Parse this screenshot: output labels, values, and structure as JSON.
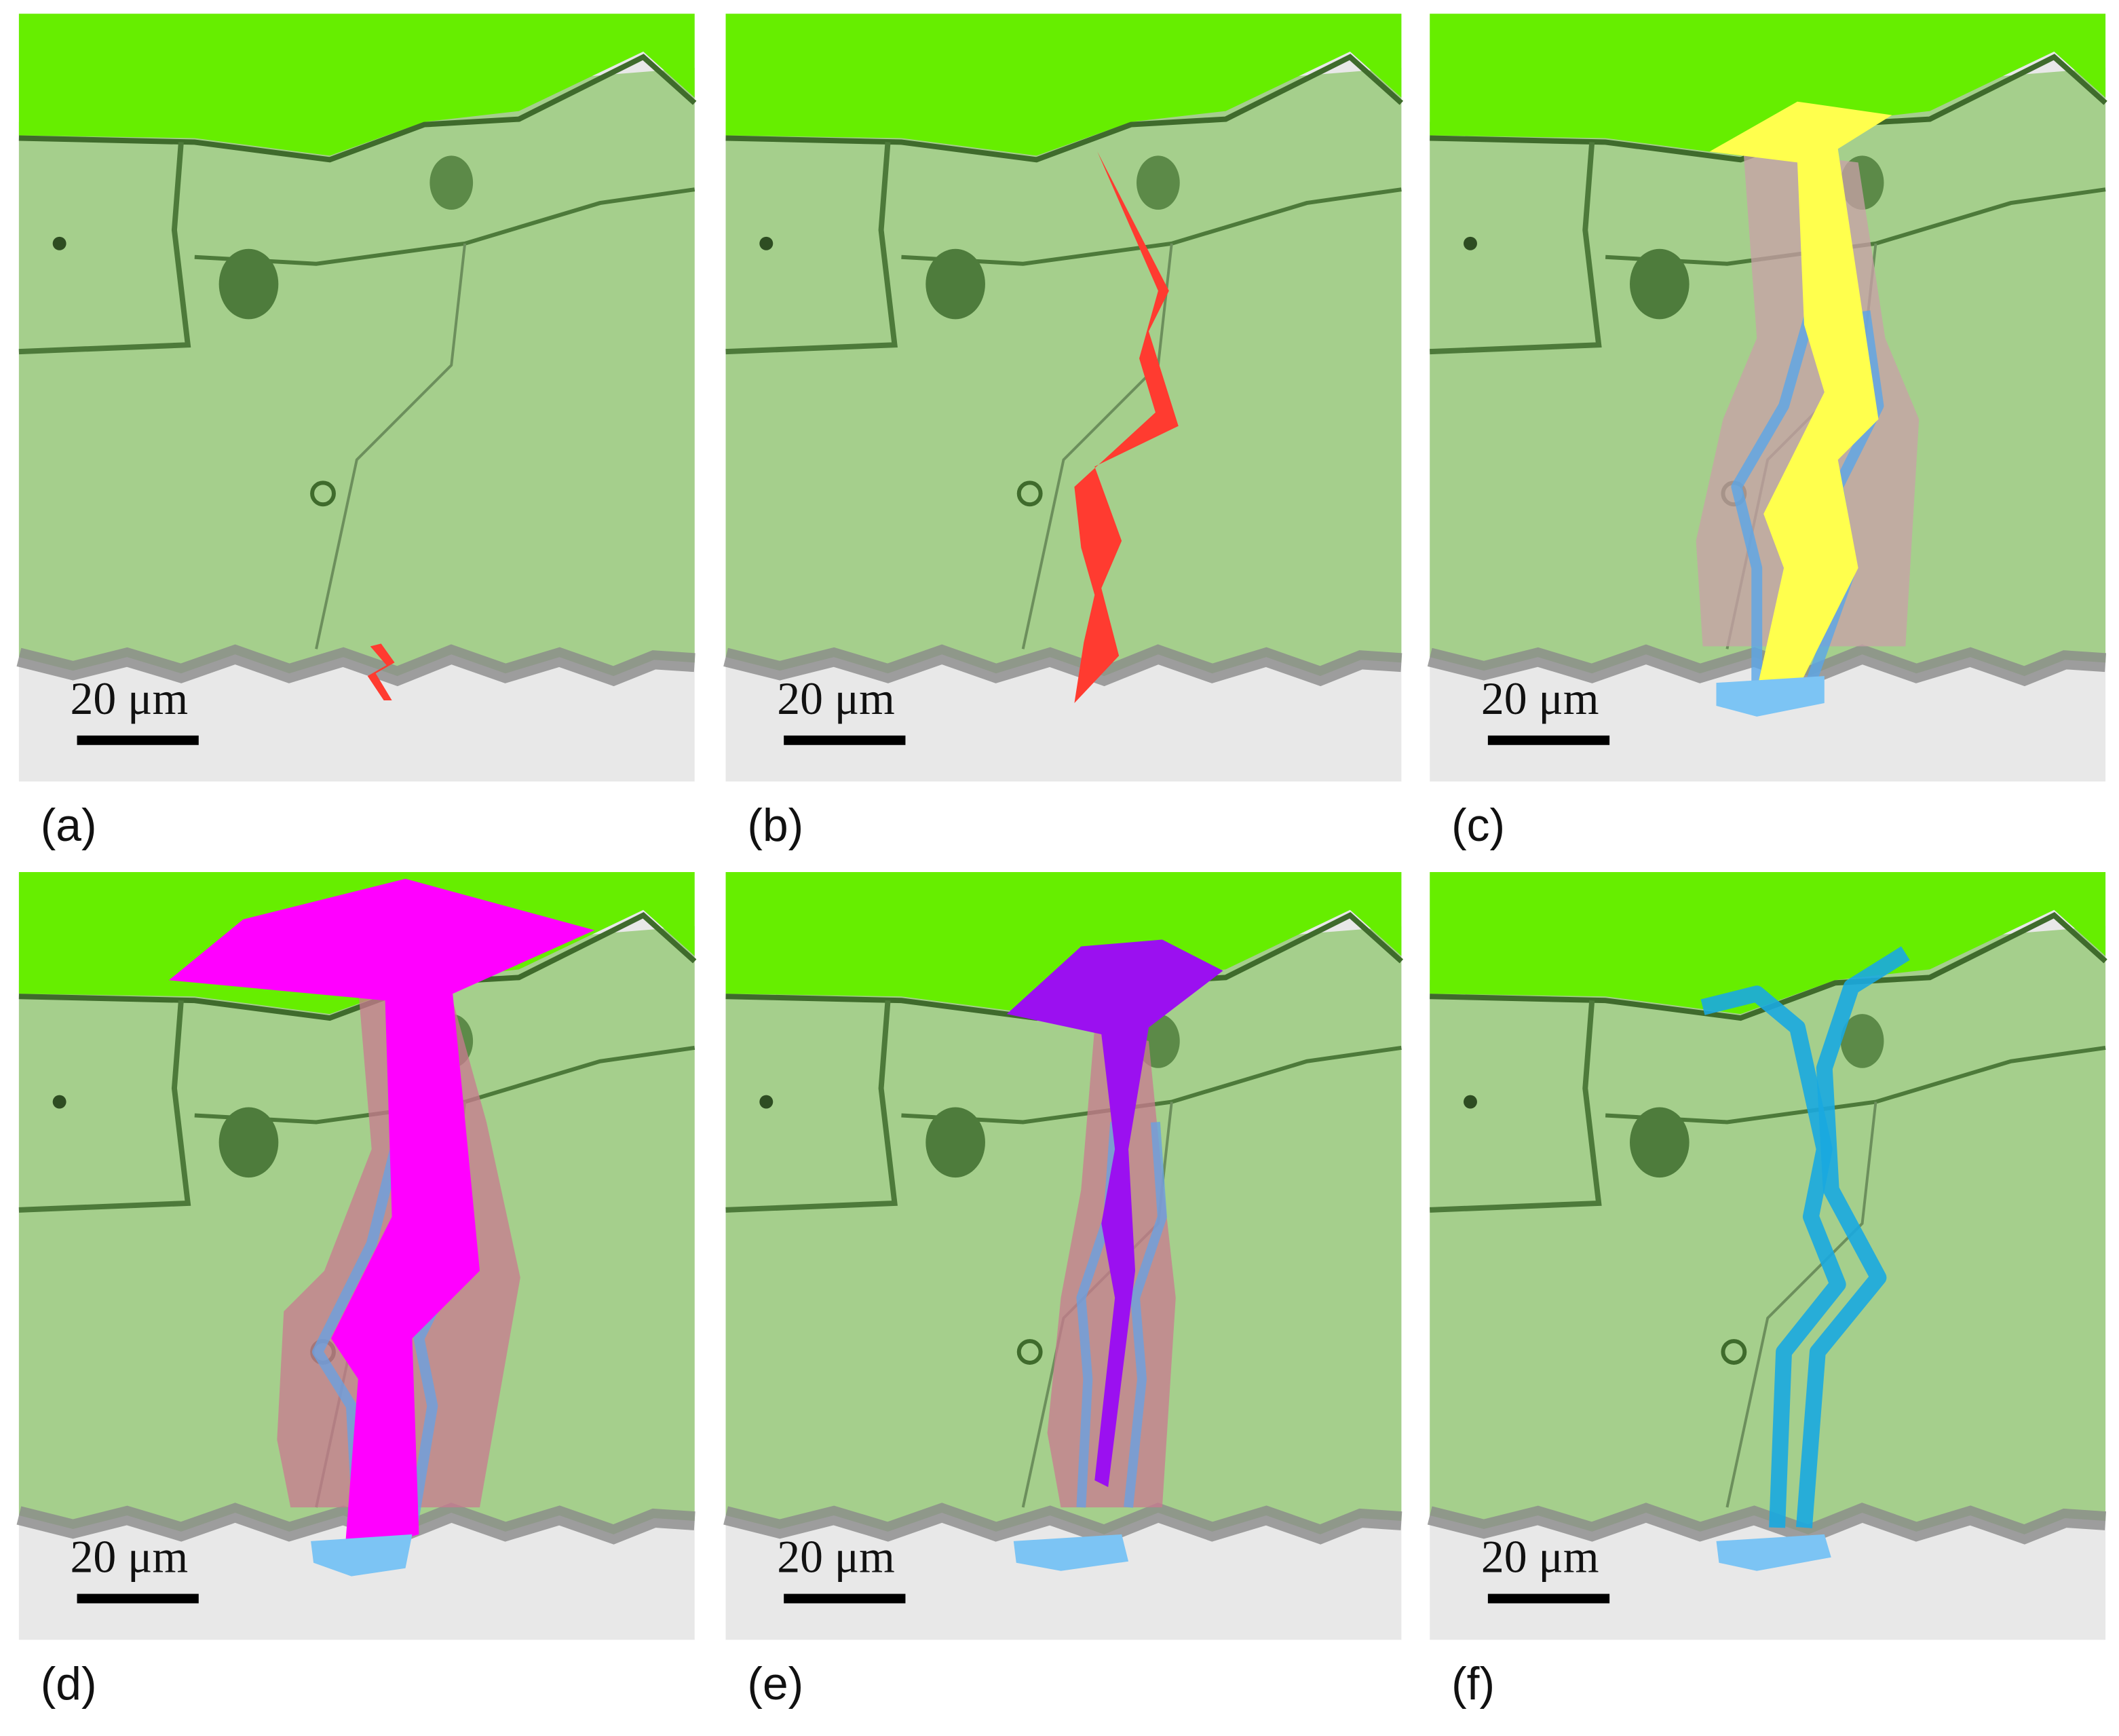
{
  "panels": [
    {
      "label": "(a)",
      "scale_bar": "20 μm"
    },
    {
      "label": "(b)",
      "scale_bar": "20 μm"
    },
    {
      "label": "(c)",
      "scale_bar": "20 μm"
    },
    {
      "label": "(d)",
      "scale_bar": "20 μm"
    },
    {
      "label": "(e)",
      "scale_bar": "20 μm"
    },
    {
      "label": "(f)",
      "scale_bar": "20 μm"
    }
  ]
}
